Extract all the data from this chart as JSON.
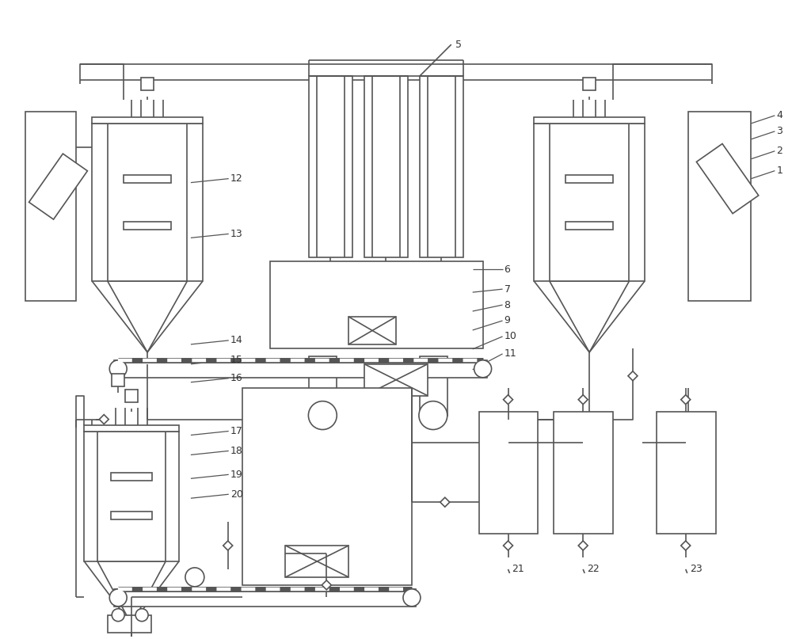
{
  "lc": "#555555",
  "lw": 1.2,
  "bg": "white"
}
